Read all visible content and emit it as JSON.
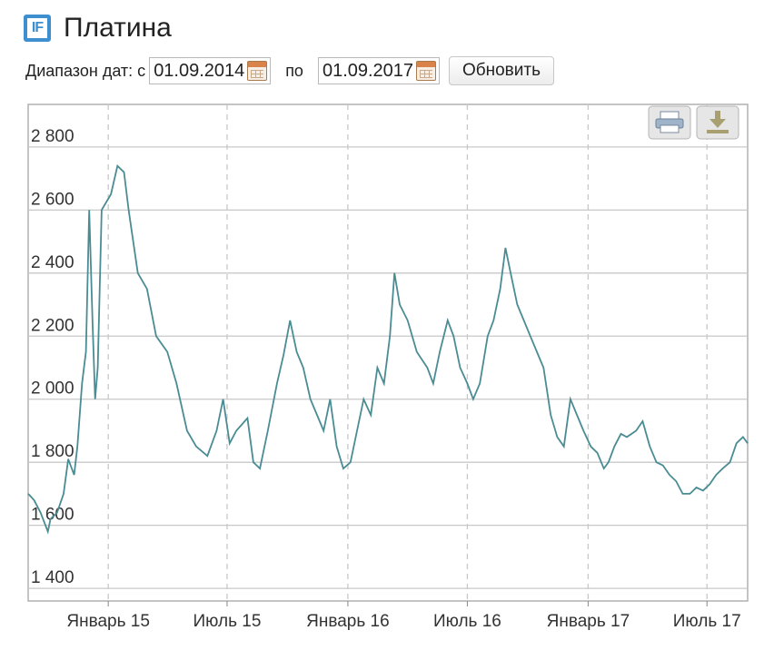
{
  "header": {
    "logo_text": "IF",
    "title": "Платина"
  },
  "controls": {
    "range_label": "Диапазон дат: с",
    "date_from": "01.09.2014",
    "to_label": "по",
    "date_to": "01.09.2017",
    "refresh_label": "Обновить"
  },
  "toolbar": {
    "print_icon": "print-icon",
    "download_icon": "download-icon"
  },
  "colors": {
    "line": "#4a8c93",
    "grid": "#c8c8c8",
    "frame": "#b0b0b0"
  },
  "chart_data": {
    "type": "line",
    "title": "",
    "xlabel": "",
    "ylabel": "",
    "x_range": [
      "2014-09-01",
      "2017-09-01"
    ],
    "ylim": [
      1360,
      2935
    ],
    "y_ticks": [
      1400,
      1600,
      1800,
      2000,
      2200,
      2400,
      2600,
      2800
    ],
    "y_tick_labels": [
      "1 400",
      "1 600",
      "1 800",
      "2 000",
      "2 200",
      "2 400",
      "2 600",
      "2 800"
    ],
    "x_ticks": [
      {
        "date": "2015-01-01",
        "label": "Январь 15"
      },
      {
        "date": "2015-07-01",
        "label": "Июль 15"
      },
      {
        "date": "2016-01-01",
        "label": "Январь 16"
      },
      {
        "date": "2016-07-01",
        "label": "Июль 16"
      },
      {
        "date": "2017-01-01",
        "label": "Январь 17"
      },
      {
        "date": "2017-07-01",
        "label": "Июль 17"
      }
    ],
    "grid": true,
    "series": [
      {
        "name": "",
        "points": [
          [
            "2014-09-01",
            1700
          ],
          [
            "2014-09-10",
            1680
          ],
          [
            "2014-09-20",
            1640
          ],
          [
            "2014-10-01",
            1580
          ],
          [
            "2014-10-05",
            1620
          ],
          [
            "2014-10-15",
            1640
          ],
          [
            "2014-10-25",
            1700
          ],
          [
            "2014-11-01",
            1810
          ],
          [
            "2014-11-10",
            1760
          ],
          [
            "2014-11-15",
            1850
          ],
          [
            "2014-11-22",
            2050
          ],
          [
            "2014-11-28",
            2150
          ],
          [
            "2014-12-03",
            2600
          ],
          [
            "2014-12-08",
            2250
          ],
          [
            "2014-12-12",
            2000
          ],
          [
            "2014-12-16",
            2100
          ],
          [
            "2014-12-22",
            2600
          ],
          [
            "2015-01-05",
            2650
          ],
          [
            "2015-01-15",
            2740
          ],
          [
            "2015-01-25",
            2720
          ],
          [
            "2015-02-01",
            2600
          ],
          [
            "2015-02-15",
            2400
          ],
          [
            "2015-03-01",
            2350
          ],
          [
            "2015-03-15",
            2200
          ],
          [
            "2015-04-01",
            2150
          ],
          [
            "2015-04-15",
            2050
          ],
          [
            "2015-05-01",
            1900
          ],
          [
            "2015-05-15",
            1850
          ],
          [
            "2015-06-01",
            1820
          ],
          [
            "2015-06-15",
            1900
          ],
          [
            "2015-06-25",
            2000
          ],
          [
            "2015-07-05",
            1860
          ],
          [
            "2015-07-15",
            1900
          ],
          [
            "2015-08-01",
            1940
          ],
          [
            "2015-08-10",
            1800
          ],
          [
            "2015-08-20",
            1780
          ],
          [
            "2015-09-01",
            1900
          ],
          [
            "2015-09-15",
            2050
          ],
          [
            "2015-09-25",
            2140
          ],
          [
            "2015-10-05",
            2250
          ],
          [
            "2015-10-15",
            2150
          ],
          [
            "2015-10-25",
            2100
          ],
          [
            "2015-11-05",
            2000
          ],
          [
            "2015-11-15",
            1950
          ],
          [
            "2015-11-25",
            1900
          ],
          [
            "2015-12-05",
            2000
          ],
          [
            "2015-12-15",
            1850
          ],
          [
            "2015-12-25",
            1780
          ],
          [
            "2016-01-05",
            1800
          ],
          [
            "2016-01-15",
            1900
          ],
          [
            "2016-01-25",
            2000
          ],
          [
            "2016-02-05",
            1950
          ],
          [
            "2016-02-15",
            2100
          ],
          [
            "2016-02-25",
            2050
          ],
          [
            "2016-03-05",
            2200
          ],
          [
            "2016-03-12",
            2400
          ],
          [
            "2016-03-20",
            2300
          ],
          [
            "2016-04-01",
            2250
          ],
          [
            "2016-04-15",
            2150
          ],
          [
            "2016-05-01",
            2100
          ],
          [
            "2016-05-10",
            2050
          ],
          [
            "2016-05-20",
            2150
          ],
          [
            "2016-06-01",
            2250
          ],
          [
            "2016-06-10",
            2200
          ],
          [
            "2016-06-20",
            2100
          ],
          [
            "2016-07-01",
            2050
          ],
          [
            "2016-07-10",
            2000
          ],
          [
            "2016-07-20",
            2050
          ],
          [
            "2016-08-01",
            2200
          ],
          [
            "2016-08-10",
            2250
          ],
          [
            "2016-08-20",
            2350
          ],
          [
            "2016-08-28",
            2480
          ],
          [
            "2016-09-05",
            2400
          ],
          [
            "2016-09-15",
            2300
          ],
          [
            "2016-09-25",
            2250
          ],
          [
            "2016-10-05",
            2200
          ],
          [
            "2016-10-15",
            2150
          ],
          [
            "2016-10-25",
            2100
          ],
          [
            "2016-11-05",
            1950
          ],
          [
            "2016-11-15",
            1880
          ],
          [
            "2016-11-25",
            1850
          ],
          [
            "2016-12-05",
            2000
          ],
          [
            "2016-12-15",
            1950
          ],
          [
            "2016-12-25",
            1900
          ],
          [
            "2017-01-05",
            1850
          ],
          [
            "2017-01-15",
            1830
          ],
          [
            "2017-01-25",
            1780
          ],
          [
            "2017-02-01",
            1800
          ],
          [
            "2017-02-10",
            1850
          ],
          [
            "2017-02-20",
            1890
          ],
          [
            "2017-03-01",
            1880
          ],
          [
            "2017-03-15",
            1900
          ],
          [
            "2017-03-25",
            1930
          ],
          [
            "2017-04-05",
            1850
          ],
          [
            "2017-04-15",
            1800
          ],
          [
            "2017-04-25",
            1790
          ],
          [
            "2017-05-05",
            1760
          ],
          [
            "2017-05-15",
            1740
          ],
          [
            "2017-05-25",
            1700
          ],
          [
            "2017-06-05",
            1700
          ],
          [
            "2017-06-15",
            1720
          ],
          [
            "2017-06-25",
            1710
          ],
          [
            "2017-07-05",
            1730
          ],
          [
            "2017-07-15",
            1760
          ],
          [
            "2017-07-25",
            1780
          ],
          [
            "2017-08-05",
            1800
          ],
          [
            "2017-08-15",
            1860
          ],
          [
            "2017-08-25",
            1880
          ],
          [
            "2017-09-01",
            1860
          ]
        ]
      }
    ]
  }
}
